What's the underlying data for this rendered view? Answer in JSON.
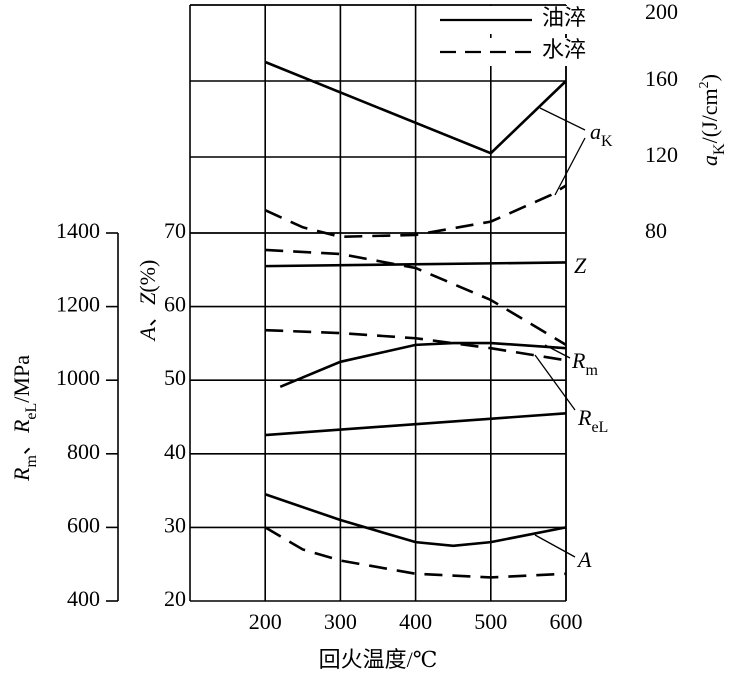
{
  "chart_data": {
    "type": "line",
    "xlabel": "回火温度/℃",
    "xlim": [
      100,
      600
    ],
    "xticks": [
      200,
      300,
      400,
      500,
      600
    ],
    "axes": {
      "az": {
        "label": [
          {
            "t": "A",
            "i": true
          },
          {
            "t": "、"
          },
          {
            "t": "Z",
            "i": true
          },
          {
            "t": "(%)"
          }
        ],
        "ylim": [
          20,
          70
        ],
        "yticks": [
          20,
          30,
          40,
          50,
          60,
          70
        ]
      },
      "ak": {
        "label": [
          {
            "t": "a",
            "i": true
          },
          {
            "t": "K",
            "sub": true
          },
          {
            "t": "/(J/cm"
          },
          {
            "t": "2",
            "sup": true
          },
          {
            "t": ")"
          }
        ],
        "ylim": [
          80,
          200
        ],
        "yticks": [
          80,
          120,
          160,
          200
        ]
      },
      "r": {
        "label": [
          {
            "t": "R",
            "i": true
          },
          {
            "t": "m",
            "sub": true
          },
          {
            "t": "、"
          },
          {
            "t": "R",
            "i": true
          },
          {
            "t": "eL",
            "sub": true
          },
          {
            "t": "/MPa"
          }
        ],
        "ylim": [
          400,
          1400
        ],
        "yticks": [
          400,
          600,
          800,
          1000,
          1200,
          1400
        ]
      }
    },
    "legend": [
      {
        "text": "油淬",
        "dash": "solid"
      },
      {
        "text": "水淬",
        "dash": "dashed"
      }
    ],
    "curve_labels": [
      {
        "parts": [
          {
            "t": "a",
            "i": true
          },
          {
            "t": "K",
            "sub": true
          }
        ]
      },
      {
        "parts": [
          {
            "t": "Z",
            "i": true
          }
        ]
      },
      {
        "parts": [
          {
            "t": "R",
            "i": true
          },
          {
            "t": "m",
            "sub": true
          }
        ]
      },
      {
        "parts": [
          {
            "t": "R",
            "i": true
          },
          {
            "t": "eL",
            "sub": true
          }
        ]
      },
      {
        "parts": [
          {
            "t": "A",
            "i": true
          }
        ]
      }
    ],
    "series": [
      {
        "axis": "ak",
        "dash": "solid",
        "color": "#000",
        "x": [
          200,
          500,
          600
        ],
        "values": [
          170,
          122,
          160
        ]
      },
      {
        "axis": "ak",
        "dash": "dashed",
        "color": "#000",
        "x": [
          200,
          250,
          300,
          400,
          500,
          580,
          600
        ],
        "values": [
          92,
          83,
          78,
          79,
          86,
          100,
          105
        ]
      },
      {
        "axis": "az",
        "dash": "solid",
        "color": "#000",
        "x": [
          200,
          600
        ],
        "values": [
          65.5,
          66
        ]
      },
      {
        "axis": "r",
        "dash": "dashed",
        "color": "#000",
        "x": [
          200,
          300,
          400,
          500,
          600
        ],
        "values": [
          1354,
          1343,
          1305,
          1218,
          1096
        ]
      },
      {
        "axis": "r",
        "dash": "dashed",
        "color": "#000",
        "x": [
          200,
          300,
          400,
          500,
          600
        ],
        "values": [
          1136,
          1128,
          1114,
          1087,
          1054
        ]
      },
      {
        "axis": "r",
        "dash": "solid",
        "color": "#000",
        "x": [
          220,
          300,
          400,
          450,
          500,
          600
        ],
        "values": [
          982,
          1050,
          1096,
          1101,
          1101,
          1087
        ]
      },
      {
        "axis": "r",
        "dash": "solid",
        "color": "#000",
        "x": [
          200,
          600
        ],
        "values": [
          851,
          910
        ]
      },
      {
        "axis": "az",
        "dash": "solid",
        "color": "#000",
        "x": [
          200,
          300,
          400,
          450,
          500,
          600
        ],
        "values": [
          34.5,
          31,
          28,
          27.5,
          28,
          30
        ]
      },
      {
        "axis": "az",
        "dash": "dashed",
        "color": "#000",
        "x": [
          200,
          250,
          300,
          400,
          500,
          600
        ],
        "values": [
          30,
          27,
          25.5,
          23.7,
          23.2,
          23.7
        ]
      }
    ]
  }
}
